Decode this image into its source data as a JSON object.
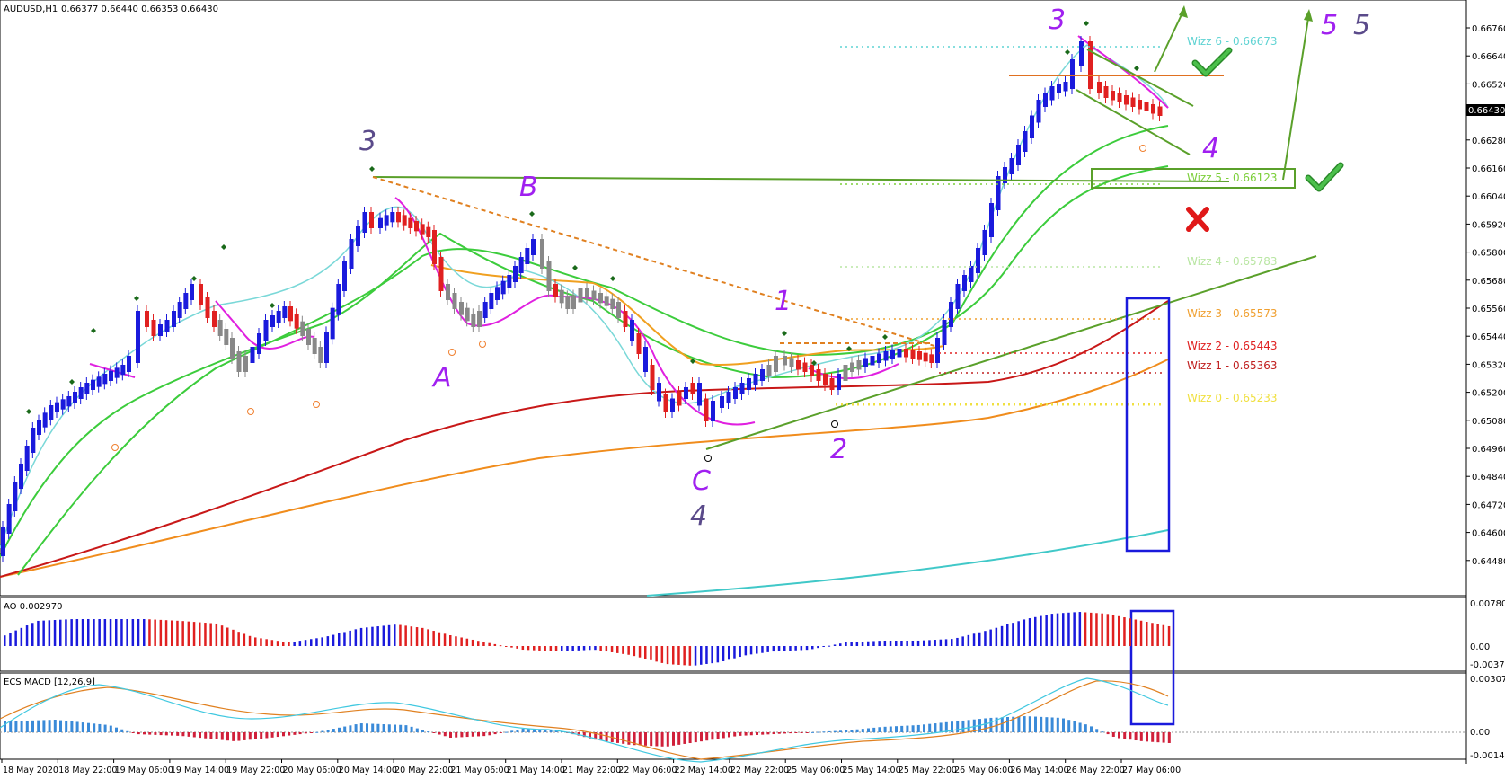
{
  "header": {
    "symbol": "AUDUSD,H1",
    "ohlc": "0.66377 0.66440 0.66353 0.66430",
    "ao_label": "AO 0.002970",
    "macd_label": "ECS MACD [12,26,9]"
  },
  "price_axis": {
    "ticks": [
      "0.66760",
      "0.66640",
      "0.66520",
      "0.66400",
      "0.66280",
      "0.66160",
      "0.66040",
      "0.65920",
      "0.65800",
      "0.65680",
      "0.65560",
      "0.65440",
      "0.65320",
      "0.65200",
      "0.65080",
      "0.64960",
      "0.64840",
      "0.64720",
      "0.64600",
      "0.64480"
    ],
    "current": "0.66430"
  },
  "ao_axis": {
    "top": "0.007801",
    "zero": "0.00",
    "bottom": "-0.003733"
  },
  "macd_axis": {
    "top": "0.00307687",
    "zero": "0.00",
    "bottom": "-0.0014632"
  },
  "time_axis": [
    "18 May 2020",
    "18 May 22:00",
    "19 May 06:00",
    "19 May 14:00",
    "19 May 22:00",
    "20 May 06:00",
    "20 May 14:00",
    "20 May 22:00",
    "21 May 06:00",
    "21 May 14:00",
    "21 May 22:00",
    "22 May 06:00",
    "22 May 14:00",
    "22 May 22:00",
    "25 May 06:00",
    "25 May 14:00",
    "25 May 22:00",
    "26 May 06:00",
    "26 May 14:00",
    "26 May 22:00",
    "27 May 06:00"
  ],
  "wizz_levels": [
    {
      "label": "Wizz 6 - 0.66673",
      "color": "#5fd3d3"
    },
    {
      "label": "Wizz 5 - 0.66123",
      "color": "#7ccf3a"
    },
    {
      "label": "Wizz 4 - 0.65783",
      "color": "#b9e6a3"
    },
    {
      "label": "Wizz 3 - 0.65573",
      "color": "#f0a030"
    },
    {
      "label": "Wizz 2 - 0.65443",
      "color": "#e02020"
    },
    {
      "label": "Wizz 1 - 0.65363",
      "color": "#c02020"
    },
    {
      "label": "Wizz 0 - 0.65233",
      "color": "#f0e040"
    }
  ],
  "wave_labels": {
    "w3_left": "3",
    "w_a": "A",
    "w_b": "B",
    "w_c": "C",
    "w4_left": "4",
    "w1": "1",
    "w2": "2",
    "w3_right": "3",
    "w4_right": "4",
    "w5_purple": "5",
    "w5_dark": "5"
  },
  "colors": {
    "bull": "#1a1adc",
    "bear": "#e02020",
    "neutral": "#888888",
    "purple": "#a020f0",
    "dark_purple": "#5a4a8a",
    "green_line": "#5aa02a",
    "orange": "#e08020"
  }
}
